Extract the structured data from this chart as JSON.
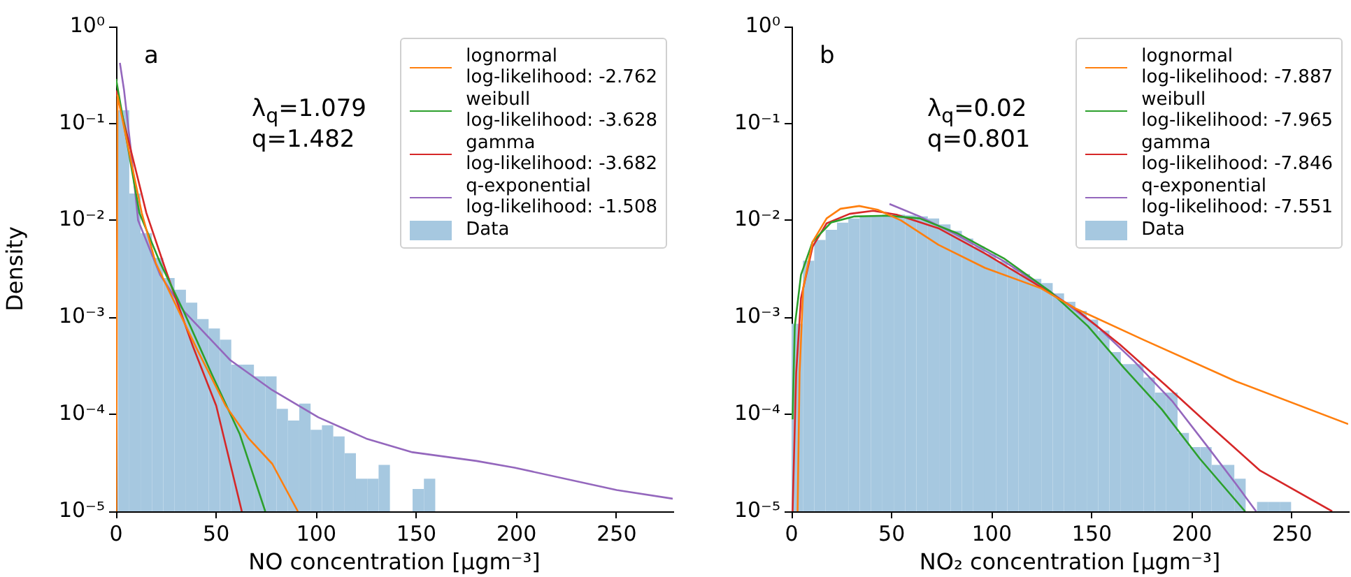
{
  "chart_data": [
    {
      "type": "histogram",
      "xlabel": "NO concentration [μgm⁻³]",
      "ylabel": "Density",
      "log": "y",
      "grid": false,
      "legend": "top right",
      "marker": "none",
      "xlim": [
        0,
        278
      ],
      "xticks": [
        0,
        50,
        100,
        150,
        200,
        250
      ],
      "ylim": [
        1e-05,
        1
      ],
      "yticks": [
        {
          "value": 1,
          "label": "10⁰"
        },
        {
          "value": 0.1,
          "label": "10⁻¹"
        },
        {
          "value": 0.01,
          "label": "10⁻²"
        },
        {
          "value": 0.001,
          "label": "10⁻³"
        },
        {
          "value": 0.0001,
          "label": "10⁻⁴"
        },
        {
          "value": 1e-05,
          "label": "10⁻⁵"
        }
      ],
      "annotations": [
        "a",
        "λ$_{q}$=1.079",
        "q=1.482"
      ],
      "series": [
        {
          "type": "line",
          "name": "lognormal\nlog-likelihood: -2.762",
          "color": "#ff7f0e",
          "x": [
            0.1,
            0.7,
            12.8,
            19.8,
            31.4,
            40.7,
            54.7,
            66.3,
            78,
            90.8
          ],
          "values": [
            1e-05,
            0.195,
            0.012,
            0.00363,
            0.00115,
            0.000457,
            0.000123,
            5.62e-05,
            3.09e-05,
            1e-05
          ]
        },
        {
          "type": "line",
          "name": "weibull\nlog-likelihood: -3.628",
          "color": "#2ca02c",
          "x": [
            0,
            11.6,
            22.1,
            33.8,
            47.7,
            61.7,
            74.5
          ],
          "values": [
            0.288,
            0.012,
            0.00363,
            0.00115,
            0.000263,
            6.31e-05,
            1e-05
          ]
        },
        {
          "type": "line",
          "name": "gamma\nlog-likelihood: -3.682",
          "color": "#d62728",
          "x": [
            0,
            15.1,
            24.4,
            38.4,
            50,
            62.8
          ],
          "values": [
            0.219,
            0.012,
            0.00324,
            0.000501,
            0.000123,
            1e-05
          ]
        },
        {
          "type": "line",
          "name": "q-exponential\nlog-likelihood: -1.508",
          "color": "#9467bd",
          "x": [
            1.9,
            4,
            7,
            11,
            22,
            34,
            57,
            78,
            101,
            125,
            148,
            180,
            199,
            250,
            278
          ],
          "values": [
            0.422,
            0.219,
            0.063,
            0.01,
            0.00275,
            0.00115,
            0.000363,
            0.000178,
            9.33e-05,
            5.62e-05,
            4.07e-05,
            3.31e-05,
            2.82e-05,
            1.66e-05,
            1.35e-05
          ]
        },
        {
          "type": "histogram",
          "name": "Data",
          "color": "#a6c8e0",
          "bins": [
            0.93,
            6.59,
            12.25,
            17.91,
            23.57,
            29.23,
            34.89,
            40.55,
            46.21,
            51.87,
            57.53,
            63.19,
            68.85,
            74.51,
            80.17,
            85.83,
            91.49,
            97.15,
            102.81,
            108.47,
            114.13,
            119.79,
            125.45,
            131.11,
            136.77,
            142.43,
            148.09,
            153.75,
            159.41
          ],
          "values": [
            0.137,
            0.019,
            0.0074,
            0.0041,
            0.00255,
            0.00193,
            0.00142,
            0.00096,
            0.00077,
            0.00059,
            0.000326,
            0.000326,
            0.000247,
            0.000247,
            0.000114,
            8.65e-05,
            0.000129,
            6.93e-05,
            7.74e-05,
            5.93e-05,
            3.98e-05,
            2.17e-05,
            2.17e-05,
            3.02e-05,
            null,
            null,
            1.7e-05,
            2.17e-05
          ]
        }
      ]
    },
    {
      "type": "histogram",
      "xlabel": "NO₂ concentration [μgm⁻³]",
      "log": "y",
      "grid": false,
      "legend": "top right",
      "marker": "none",
      "xlim": [
        0,
        278
      ],
      "xticks": [
        0,
        50,
        100,
        150,
        200,
        250
      ],
      "ylim": [
        1e-05,
        1
      ],
      "yticks": [
        {
          "value": 1,
          "label": "10⁰"
        },
        {
          "value": 0.1,
          "label": "10⁻¹"
        },
        {
          "value": 0.01,
          "label": "10⁻²"
        },
        {
          "value": 0.001,
          "label": "10⁻³"
        },
        {
          "value": 0.0001,
          "label": "10⁻⁴"
        },
        {
          "value": 1e-05,
          "label": "10⁻⁵"
        }
      ],
      "annotations": [
        "b",
        "λ$_{q}$=0.02",
        "q=0.801"
      ],
      "series": [
        {
          "type": "line",
          "name": "lognormal\nlog-likelihood: -7.887",
          "color": "#ff7f0e",
          "x": [
            3,
            4,
            5.8,
            10.5,
            17.5,
            24.4,
            33.8,
            43,
            54.7,
            73.3,
            96.6,
            124.5,
            141,
            175.7,
            222,
            278
          ],
          "values": [
            1e-05,
            0.000269,
            0.002,
            0.00603,
            0.0105,
            0.0132,
            0.0141,
            0.0129,
            0.01,
            0.00562,
            0.00324,
            0.002,
            0.00126,
            0.000589,
            0.000219,
            7.94e-05
          ]
        },
        {
          "type": "line",
          "name": "weibull\nlog-likelihood: -7.965",
          "color": "#2ca02c",
          "x": [
            0.5,
            1.6,
            4.7,
            10.5,
            19.8,
            31.4,
            47.7,
            64,
            82.6,
            106,
            129,
            148,
            166,
            185,
            204,
            226.5
          ],
          "values": [
            8.91e-05,
            0.000813,
            0.00275,
            0.00603,
            0.00955,
            0.011,
            0.0112,
            0.0105,
            0.00741,
            0.00407,
            0.00186,
            0.000813,
            0.000302,
            0.000112,
            3.47e-05,
            1e-05
          ]
        },
        {
          "type": "line",
          "name": "gamma\nlog-likelihood: -7.846",
          "color": "#d62728",
          "x": [
            0.5,
            2.3,
            4.7,
            10.5,
            17.5,
            29,
            40.7,
            52.4,
            73.3,
            96.6,
            120,
            141,
            164,
            187.4,
            210.7,
            234,
            270
          ],
          "values": [
            1e-05,
            0.000269,
            0.00158,
            0.00537,
            0.00933,
            0.0117,
            0.0126,
            0.0115,
            0.00832,
            0.00457,
            0.00234,
            0.00126,
            0.000525,
            0.000195,
            7.08e-05,
            2.63e-05,
            1e-05
          ]
        },
        {
          "type": "line",
          "name": "q-exponential\nlog-likelihood: -7.551",
          "color": "#9467bd",
          "x": [
            48.9,
            64,
            82.6,
            106,
            129,
            152.5,
            171,
            190,
            208,
            222,
            232
          ],
          "values": [
            0.0148,
            0.011,
            0.00708,
            0.0038,
            0.00186,
            0.000813,
            0.000355,
            0.000138,
            4.57e-05,
            1.91e-05,
            1e-05
          ]
        },
        {
          "type": "histogram",
          "name": "Data",
          "color": "#a6c8e0",
          "bins": [
            0,
            5.67,
            11.34,
            17.01,
            22.68,
            28.35,
            34.02,
            39.69,
            45.36,
            51.03,
            56.7,
            62.37,
            68.04,
            73.71,
            79.38,
            85.05,
            90.72,
            96.39,
            102.06,
            107.73,
            113.4,
            119.07,
            124.74,
            130.41,
            136.08,
            141.75,
            147.42,
            153.09,
            158.76,
            164.43,
            170.1,
            175.77,
            181.44,
            187.11,
            192.78,
            198.45,
            204.12,
            209.79,
            215.46,
            221.13,
            226.8,
            232.47,
            238.14,
            243.81,
            249.48
          ],
          "values": [
            0.00086,
            0.00384,
            0.0063,
            0.008,
            0.0095,
            0.0105,
            0.011,
            0.0113,
            0.0115,
            0.0115,
            0.0113,
            0.011,
            0.0105,
            0.0091,
            0.0078,
            0.0065,
            0.0054,
            0.0045,
            0.0038,
            0.0032,
            0.0028,
            0.0025,
            0.00226,
            0.00177,
            0.00145,
            0.00117,
            0.00095,
            0.00073,
            0.00044,
            0.00033,
            0.00033,
            0.00024,
            0.000168,
            0.000168,
            6.45e-05,
            4.6e-05,
            4.6e-05,
            3.02e-05,
            3.02e-05,
            2.17e-05,
            null,
            1.25e-05,
            1.25e-05,
            1.25e-05
          ]
        }
      ]
    }
  ]
}
